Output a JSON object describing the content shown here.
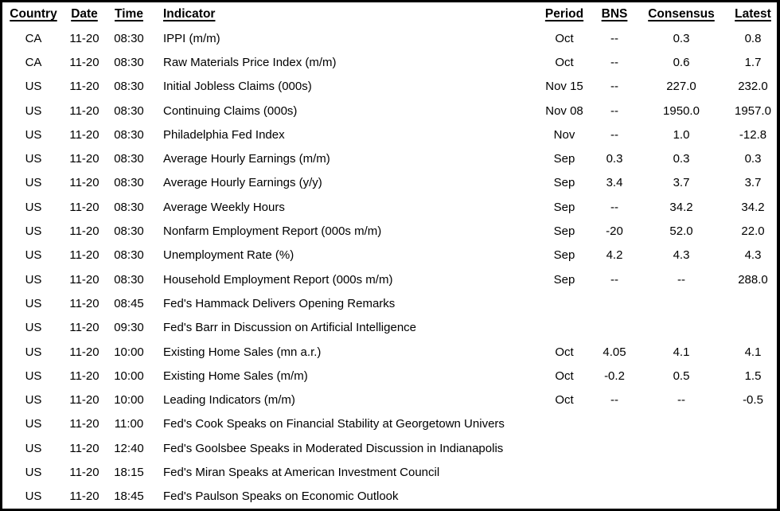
{
  "table": {
    "columns": [
      {
        "key": "country",
        "label": "Country"
      },
      {
        "key": "date",
        "label": "Date"
      },
      {
        "key": "time",
        "label": "Time"
      },
      {
        "key": "indicator",
        "label": "Indicator"
      },
      {
        "key": "period",
        "label": "Period"
      },
      {
        "key": "bns",
        "label": "BNS"
      },
      {
        "key": "consensus",
        "label": "Consensus"
      },
      {
        "key": "latest",
        "label": "Latest"
      }
    ],
    "rows": [
      {
        "country": "CA",
        "date": "11-20",
        "time": "08:30",
        "indicator": "IPPI (m/m)",
        "period": "Oct",
        "bns": "--",
        "consensus": "0.3",
        "latest": "0.8"
      },
      {
        "country": "CA",
        "date": "11-20",
        "time": "08:30",
        "indicator": "Raw Materials Price Index (m/m)",
        "period": "Oct",
        "bns": "--",
        "consensus": "0.6",
        "latest": "1.7"
      },
      {
        "country": "US",
        "date": "11-20",
        "time": "08:30",
        "indicator": "Initial Jobless Claims (000s)",
        "period": "Nov 15",
        "bns": "--",
        "consensus": "227.0",
        "latest": "232.0"
      },
      {
        "country": "US",
        "date": "11-20",
        "time": "08:30",
        "indicator": "Continuing Claims (000s)",
        "period": "Nov 08",
        "bns": "--",
        "consensus": "1950.0",
        "latest": "1957.0"
      },
      {
        "country": "US",
        "date": "11-20",
        "time": "08:30",
        "indicator": "Philadelphia Fed Index",
        "period": "Nov",
        "bns": "--",
        "consensus": "1.0",
        "latest": "-12.8"
      },
      {
        "country": "US",
        "date": "11-20",
        "time": "08:30",
        "indicator": "Average Hourly Earnings (m/m)",
        "period": "Sep",
        "bns": "0.3",
        "consensus": "0.3",
        "latest": "0.3"
      },
      {
        "country": "US",
        "date": "11-20",
        "time": "08:30",
        "indicator": "Average Hourly Earnings (y/y)",
        "period": "Sep",
        "bns": "3.4",
        "consensus": "3.7",
        "latest": "3.7"
      },
      {
        "country": "US",
        "date": "11-20",
        "time": "08:30",
        "indicator": "Average Weekly Hours",
        "period": "Sep",
        "bns": "--",
        "consensus": "34.2",
        "latest": "34.2"
      },
      {
        "country": "US",
        "date": "11-20",
        "time": "08:30",
        "indicator": "Nonfarm Employment Report (000s m/m)",
        "period": "Sep",
        "bns": "-20",
        "consensus": "52.0",
        "latest": "22.0"
      },
      {
        "country": "US",
        "date": "11-20",
        "time": "08:30",
        "indicator": "Unemployment Rate (%)",
        "period": "Sep",
        "bns": "4.2",
        "consensus": "4.3",
        "latest": "4.3"
      },
      {
        "country": "US",
        "date": "11-20",
        "time": "08:30",
        "indicator": "Household Employment Report (000s m/m)",
        "period": "Sep",
        "bns": "--",
        "consensus": "--",
        "latest": "288.0"
      },
      {
        "country": "US",
        "date": "11-20",
        "time": "08:45",
        "indicator": "Fed's Hammack Delivers Opening Remarks",
        "period": "",
        "bns": "",
        "consensus": "",
        "latest": ""
      },
      {
        "country": "US",
        "date": "11-20",
        "time": "09:30",
        "indicator": "Fed's Barr in Discussion on Artificial Intelligence",
        "period": "",
        "bns": "",
        "consensus": "",
        "latest": ""
      },
      {
        "country": "US",
        "date": "11-20",
        "time": "10:00",
        "indicator": "Existing Home Sales (mn a.r.)",
        "period": "Oct",
        "bns": "4.05",
        "consensus": "4.1",
        "latest": "4.1"
      },
      {
        "country": "US",
        "date": "11-20",
        "time": "10:00",
        "indicator": "Existing Home Sales (m/m)",
        "period": "Oct",
        "bns": "-0.2",
        "consensus": "0.5",
        "latest": "1.5"
      },
      {
        "country": "US",
        "date": "11-20",
        "time": "10:00",
        "indicator": "Leading Indicators (m/m)",
        "period": "Oct",
        "bns": "--",
        "consensus": "--",
        "latest": "-0.5"
      },
      {
        "country": "US",
        "date": "11-20",
        "time": "11:00",
        "indicator": "Fed's Cook Speaks on Financial Stability at Georgetown Univers",
        "period": "",
        "bns": "",
        "consensus": "",
        "latest": ""
      },
      {
        "country": "US",
        "date": "11-20",
        "time": "12:40",
        "indicator": "Fed's Goolsbee Speaks in Moderated Discussion in Indianapolis",
        "period": "",
        "bns": "",
        "consensus": "",
        "latest": ""
      },
      {
        "country": "US",
        "date": "11-20",
        "time": "18:15",
        "indicator": "Fed's Miran Speaks at American Investment Council",
        "period": "",
        "bns": "",
        "consensus": "",
        "latest": ""
      },
      {
        "country": "US",
        "date": "11-20",
        "time": "18:45",
        "indicator": "Fed's Paulson Speaks on Economic Outlook",
        "period": "",
        "bns": "",
        "consensus": "",
        "latest": ""
      }
    ],
    "colors": {
      "text": "#000000",
      "background": "#ffffff",
      "border": "#000000"
    }
  }
}
